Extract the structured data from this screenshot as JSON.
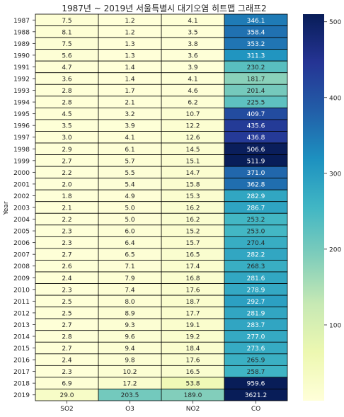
{
  "chart_data": {
    "type": "heatmap",
    "title": "1987년 ~ 2019년 서울특별시 대기오염 히트맵 그래프2",
    "ylabel": "Year",
    "xlabel": "",
    "columns": [
      "SO2",
      "O3",
      "NO2",
      "CO"
    ],
    "rows": [
      "1987",
      "1988",
      "1989",
      "1990",
      "1991",
      "1992",
      "1993",
      "1994",
      "1995",
      "1996",
      "1997",
      "1998",
      "1999",
      "2000",
      "2001",
      "2002",
      "2003",
      "2004",
      "2005",
      "2006",
      "2007",
      "2008",
      "2009",
      "2010",
      "2011",
      "2012",
      "2013",
      "2014",
      "2015",
      "2016",
      "2017",
      "2018",
      "2019"
    ],
    "values": [
      [
        7.5,
        1.2,
        4.1,
        346.1
      ],
      [
        8.1,
        1.2,
        3.5,
        358.4
      ],
      [
        7.5,
        1.3,
        3.8,
        353.2
      ],
      [
        5.6,
        1.3,
        3.6,
        311.3
      ],
      [
        4.7,
        1.4,
        3.9,
        230.2
      ],
      [
        3.6,
        1.4,
        4.1,
        181.7
      ],
      [
        2.8,
        1.7,
        4.6,
        201.4
      ],
      [
        2.8,
        2.1,
        6.2,
        225.5
      ],
      [
        4.5,
        3.2,
        10.7,
        409.7
      ],
      [
        3.5,
        3.9,
        12.2,
        435.6
      ],
      [
        3.0,
        4.1,
        12.6,
        436.8
      ],
      [
        2.9,
        6.1,
        14.5,
        506.6
      ],
      [
        2.7,
        5.7,
        15.1,
        511.9
      ],
      [
        2.2,
        5.5,
        14.7,
        371.0
      ],
      [
        2.0,
        5.4,
        15.8,
        362.8
      ],
      [
        1.8,
        4.9,
        15.3,
        282.9
      ],
      [
        2.1,
        5.0,
        16.2,
        286.7
      ],
      [
        2.2,
        5.0,
        16.2,
        253.2
      ],
      [
        2.3,
        6.0,
        15.2,
        253.0
      ],
      [
        2.3,
        6.4,
        15.7,
        270.4
      ],
      [
        2.7,
        6.5,
        16.5,
        282.2
      ],
      [
        2.6,
        7.1,
        17.4,
        268.3
      ],
      [
        2.4,
        7.9,
        16.8,
        281.6
      ],
      [
        2.3,
        7.4,
        17.6,
        278.9
      ],
      [
        2.5,
        8.0,
        18.7,
        292.7
      ],
      [
        2.5,
        8.9,
        17.7,
        281.9
      ],
      [
        2.7,
        9.3,
        19.1,
        283.7
      ],
      [
        2.8,
        9.6,
        19.2,
        277.0
      ],
      [
        2.7,
        9.4,
        18.4,
        273.6
      ],
      [
        2.4,
        9.8,
        17.6,
        265.9
      ],
      [
        2.3,
        10.2,
        16.5,
        258.7
      ],
      [
        6.9,
        17.2,
        53.8,
        959.6
      ],
      [
        29.0,
        203.5,
        189.0,
        3621.2
      ]
    ],
    "vmin": 0,
    "vmax": 510,
    "colorbar_ticks": [
      100,
      200,
      300,
      400,
      500
    ],
    "colormap": "YlGnBu",
    "cell_border_color": "#000000",
    "annotated": true
  }
}
